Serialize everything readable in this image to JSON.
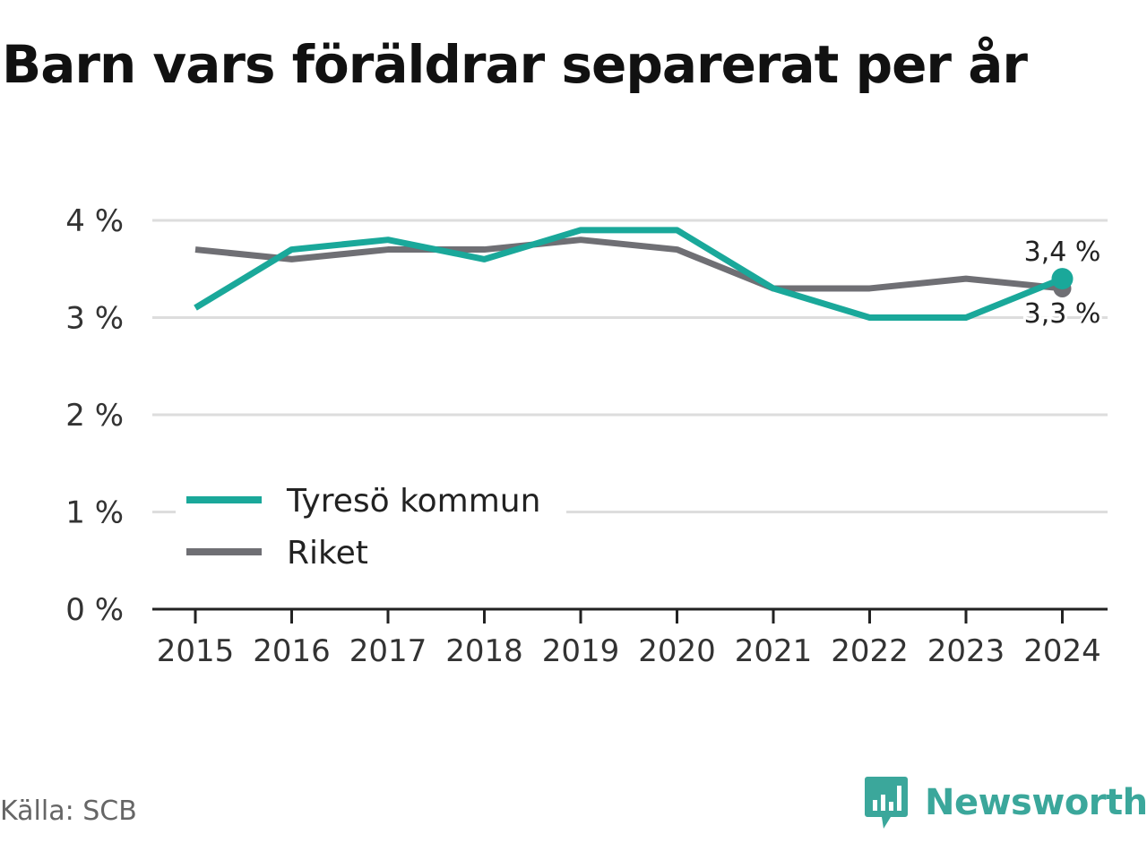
{
  "title": "Barn vars föräldrar separerat per år",
  "source": "Källa: SCB",
  "brand": {
    "name": "Newsworthy",
    "logo_icon": "bar-chart-speech-bubble-icon",
    "color": "#3ba79b"
  },
  "chart_data": {
    "type": "line",
    "title": "Barn vars föräldrar separerat per år",
    "x": [
      "2015",
      "2016",
      "2017",
      "2018",
      "2019",
      "2020",
      "2021",
      "2022",
      "2023",
      "2024"
    ],
    "y_ticks": [
      "0 %",
      "1 %",
      "2 %",
      "3 %",
      "4 %"
    ],
    "ylim": [
      0,
      4
    ],
    "grid": true,
    "legend_position": "bottom-left",
    "series": [
      {
        "name": "Tyresö kommun",
        "color": "#1aa89a",
        "values": [
          3.1,
          3.7,
          3.8,
          3.6,
          3.9,
          3.9,
          3.3,
          3.0,
          3.0,
          3.4
        ],
        "end_label": "3,4 %"
      },
      {
        "name": "Riket",
        "color": "#6f6f74",
        "values": [
          3.7,
          3.6,
          3.7,
          3.7,
          3.8,
          3.7,
          3.3,
          3.3,
          3.4,
          3.3
        ],
        "end_label": "3,3 %"
      }
    ]
  }
}
